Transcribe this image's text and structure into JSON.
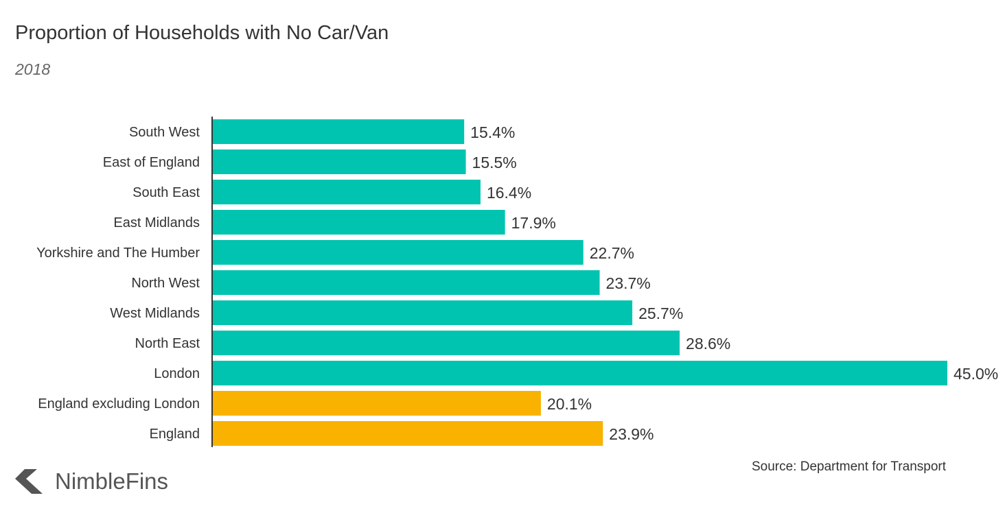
{
  "chart_data": {
    "type": "bar",
    "orientation": "horizontal",
    "title": "Proportion of Households with No Car/Van",
    "subtitle": "2018",
    "categories": [
      "South West",
      "East of England",
      "South East",
      "East Midlands",
      "Yorkshire and The Humber",
      "North West",
      "West Midlands",
      "North East",
      "London",
      "England excluding London",
      "England"
    ],
    "values": [
      15.4,
      15.5,
      16.4,
      17.9,
      22.7,
      23.7,
      25.7,
      28.6,
      45.0,
      20.1,
      23.9
    ],
    "data_labels": [
      "15.4%",
      "15.5%",
      "16.4%",
      "17.9%",
      "22.7%",
      "23.7%",
      "25.7%",
      "28.6%",
      "45.0%",
      "20.1%",
      "23.9%"
    ],
    "bar_colors": [
      "#00C4B0",
      "#00C4B0",
      "#00C4B0",
      "#00C4B0",
      "#00C4B0",
      "#00C4B0",
      "#00C4B0",
      "#00C4B0",
      "#00C4B0",
      "#F9B200",
      "#F9B200"
    ],
    "xlim": [
      0,
      45
    ],
    "grid": false,
    "xlabel": "",
    "ylabel": ""
  },
  "source": "Source: Department for Transport",
  "logo": {
    "text": "NimbleFins"
  }
}
